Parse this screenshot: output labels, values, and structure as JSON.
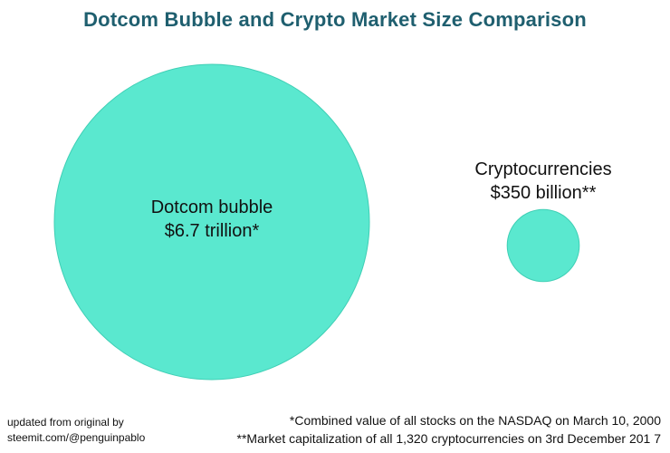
{
  "chart_data": {
    "type": "bubble",
    "title": "Dotcom Bubble and Crypto Market Size Comparison",
    "bubbles": [
      {
        "label": "Dotcom bubble",
        "value_text": "$6.7 trillion*",
        "value": 6700,
        "unit": "billion USD"
      },
      {
        "label": "Cryptocurrencies",
        "value_text": "$350 billion**",
        "value": 350,
        "unit": "billion USD"
      }
    ],
    "bubble_color": "#5ae8cf",
    "bubble_stroke": "#3fcfb5",
    "footnotes": [
      "*Combined value of all stocks on the NASDAQ on March 10, 2000",
      "**Market capitalization of all 1,320 cryptocurrencies on 3rd December 201 7"
    ],
    "credit": [
      "updated from original by",
      "steemit.com/@penguinpablo"
    ]
  }
}
